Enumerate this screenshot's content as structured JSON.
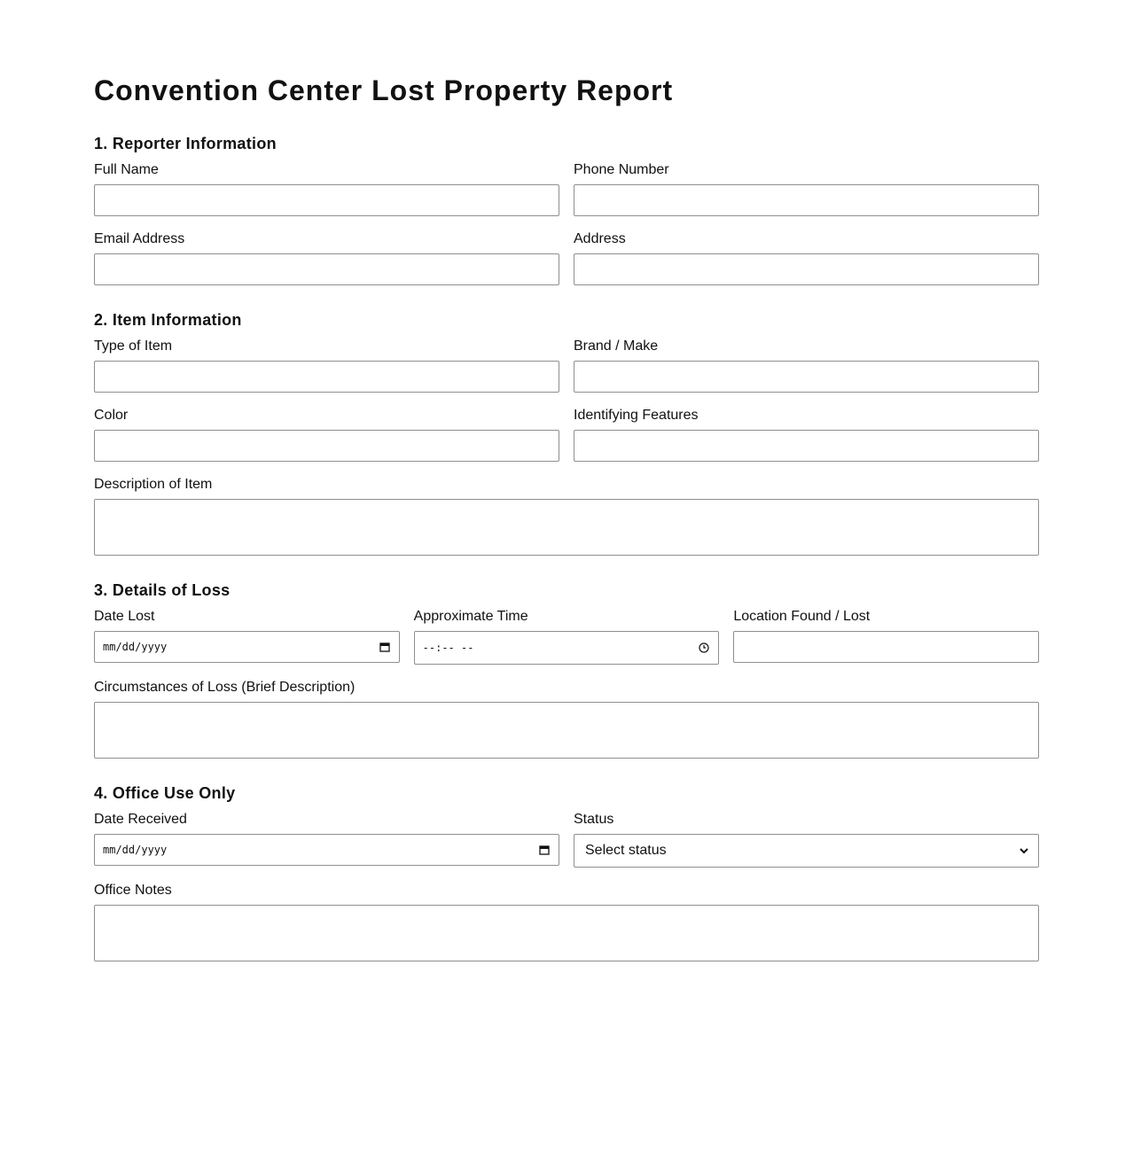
{
  "header": {
    "title": "Convention Center Lost Property Report"
  },
  "sections": [
    {
      "heading": "1. Reporter Information",
      "fields": [
        {
          "label": "Full Name"
        },
        {
          "label": "Phone Number"
        },
        {
          "label": "Email Address"
        },
        {
          "label": "Address"
        }
      ]
    },
    {
      "heading": "2. Item Information",
      "fields": [
        {
          "label": "Type of Item"
        },
        {
          "label": "Brand / Make"
        },
        {
          "label": "Color"
        },
        {
          "label": "Identifying Features"
        },
        {
          "label": "Description of Item"
        }
      ]
    },
    {
      "heading": "3. Details of Loss",
      "fields": [
        {
          "label": "Date Lost",
          "placeholder": "mm/dd/yyyy"
        },
        {
          "label": "Approximate Time",
          "placeholder": "--:-- --"
        },
        {
          "label": "Location Found / Lost"
        },
        {
          "label": "Circumstances of Loss (Brief Description)"
        }
      ]
    },
    {
      "heading": "4. Office Use Only",
      "fields": [
        {
          "label": "Date Received",
          "placeholder": "mm/dd/yyyy"
        },
        {
          "label": "Status",
          "value": "Select status"
        },
        {
          "label": "Office Notes"
        }
      ]
    }
  ]
}
